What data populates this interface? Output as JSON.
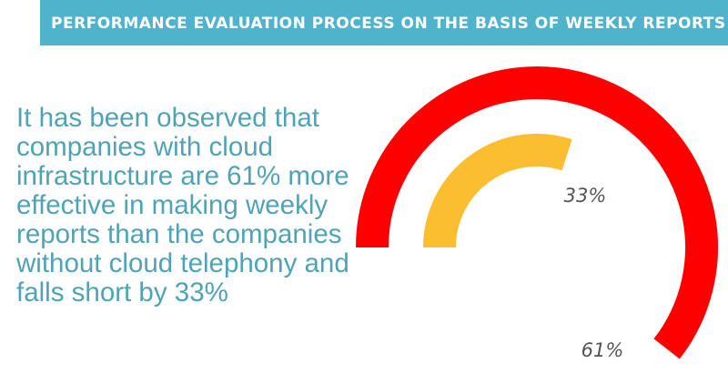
{
  "header": {
    "title": "PERFORMANCE EVALUATION PROCESS ON THE BASIS OF WEEKLY REPORTS"
  },
  "description": "It has been observed that companies with cloud infrastructure are 61% more effective in making weekly reports than the companies without cloud telephony and falls short by 33%",
  "colors": {
    "header_bg": "#4fb3cc",
    "text": "#4fa3b5",
    "outer_arc": "#ff0000",
    "inner_arc": "#fbbe30",
    "label": "#555555"
  },
  "chart_data": {
    "type": "gauge",
    "title": "",
    "series": [
      {
        "label": "61%",
        "value": 61,
        "color": "#ff0000"
      },
      {
        "label": "33%",
        "value": 33,
        "color": "#fbbe30"
      }
    ]
  }
}
